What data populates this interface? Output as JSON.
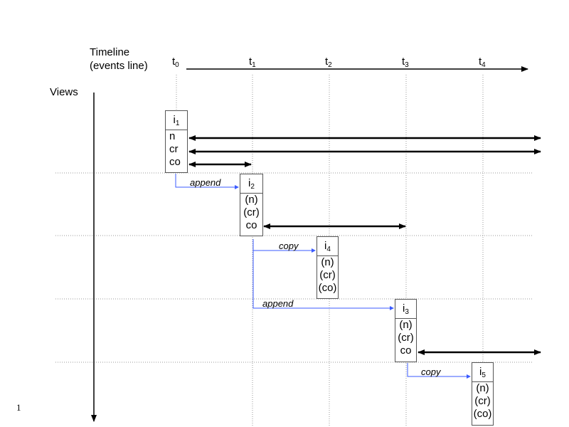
{
  "timeline_label": [
    "Timeline",
    "(events line)"
  ],
  "views_label": "Views",
  "time_points": [
    {
      "base": "t",
      "sub": "0"
    },
    {
      "base": "t",
      "sub": "1"
    },
    {
      "base": "t",
      "sub": "2"
    },
    {
      "base": "t",
      "sub": "3"
    },
    {
      "base": "t",
      "sub": "4"
    }
  ],
  "views": [
    {
      "base": "i",
      "sub": "1",
      "rows": [
        "n",
        "cr",
        "co"
      ]
    },
    {
      "base": "i",
      "sub": "2",
      "rows": [
        "(n)",
        "(cr)",
        "co"
      ]
    },
    {
      "base": "i",
      "sub": "4",
      "rows": [
        "(n)",
        "(cr)",
        "(co)"
      ]
    },
    {
      "base": "i",
      "sub": "3",
      "rows": [
        "(n)",
        "(cr)",
        "co"
      ]
    },
    {
      "base": "i",
      "sub": "5",
      "rows": [
        "(n)",
        "(cr)",
        "(co)"
      ]
    }
  ],
  "operations": [
    "append",
    "copy",
    "append",
    "copy"
  ],
  "page_number": "1",
  "colors": {
    "connector": "#3b5bff",
    "grid": "#999999",
    "box_border": "#555555"
  }
}
